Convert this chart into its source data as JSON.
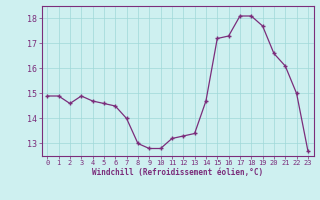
{
  "x": [
    0,
    1,
    2,
    3,
    4,
    5,
    6,
    7,
    8,
    9,
    10,
    11,
    12,
    13,
    14,
    15,
    16,
    17,
    18,
    19,
    20,
    21,
    22,
    23
  ],
  "y": [
    14.9,
    14.9,
    14.6,
    14.9,
    14.7,
    14.6,
    14.5,
    14.0,
    13.0,
    12.8,
    12.8,
    13.2,
    13.3,
    13.4,
    14.7,
    17.2,
    17.3,
    18.1,
    18.1,
    17.7,
    16.6,
    16.1,
    15.0,
    12.7
  ],
  "xlim": [
    -0.5,
    23.5
  ],
  "ylim": [
    12.5,
    18.5
  ],
  "yticks": [
    13,
    14,
    15,
    16,
    17,
    18
  ],
  "xticks": [
    0,
    1,
    2,
    3,
    4,
    5,
    6,
    7,
    8,
    9,
    10,
    11,
    12,
    13,
    14,
    15,
    16,
    17,
    18,
    19,
    20,
    21,
    22,
    23
  ],
  "xlabel": "Windchill (Refroidissement éolien,°C)",
  "line_color": "#7b2d7b",
  "bg_color": "#cef0f0",
  "grid_color": "#a0d8d8",
  "tick_color": "#7b2d7b",
  "xlabel_color": "#7b2d7b",
  "spine_color": "#7b2d7b",
  "xtick_fontsize": 5.0,
  "ytick_fontsize": 6.0,
  "xlabel_fontsize": 5.5
}
